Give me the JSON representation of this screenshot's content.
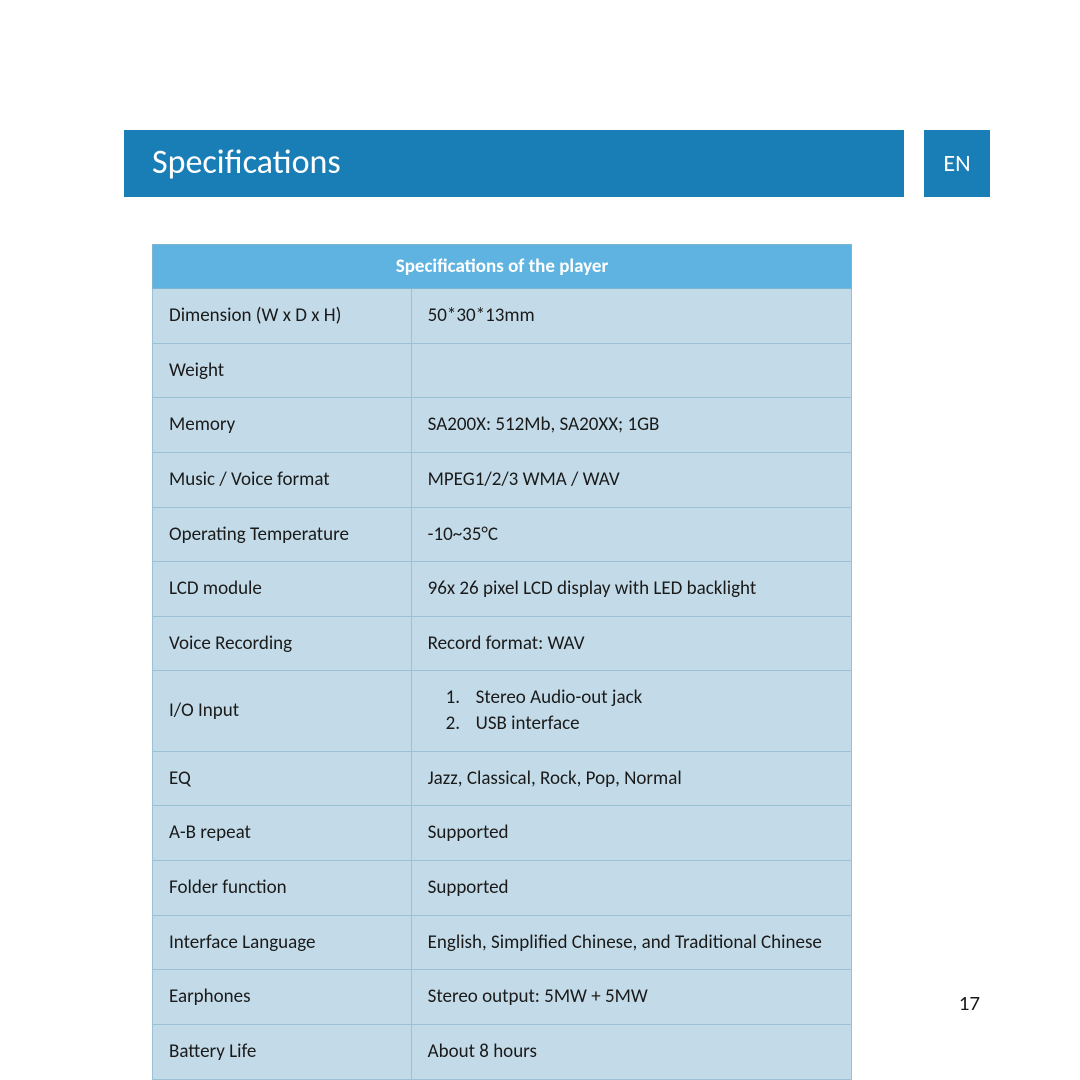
{
  "header": {
    "title": "Specifications",
    "lang_badge": "EN"
  },
  "table": {
    "type": "table",
    "header": "Specifications of the player",
    "header_bg": "#5fb3e0",
    "header_fg": "#ffffff",
    "cell_bg": "#c3dbe8",
    "border_color": "#9ac1d5",
    "label_fontsize": 19,
    "columns": [
      "label",
      "value"
    ],
    "col_widths": [
      "37%",
      "63%"
    ],
    "rows": [
      {
        "label": "Dimension (W x D x H)",
        "value": "50*30*13mm"
      },
      {
        "label": "Weight",
        "value": ""
      },
      {
        "label": "Memory",
        "value": "SA200X: 512Mb, SA20XX; 1GB"
      },
      {
        "label": "Music / Voice format",
        "value": "MPEG1/2/3 WMA / WAV"
      },
      {
        "label": "Operating Temperature",
        "value": "-10~35°C"
      },
      {
        "label": "LCD module",
        "value": "96x 26 pixel LCD display with LED backlight"
      },
      {
        "label": "Voice Recording",
        "value": "Record format: WAV"
      },
      {
        "label": "I/O Input",
        "value_list": [
          "Stereo Audio-out jack",
          "USB interface"
        ]
      },
      {
        "label": "EQ",
        "value": "Jazz, Classical, Rock, Pop, Normal"
      },
      {
        "label": "A-B repeat",
        "value": "Supported"
      },
      {
        "label": "Folder function",
        "value": "Supported"
      },
      {
        "label": "Interface Language",
        "value": "English, Simplified Chinese, and Traditional Chinese"
      },
      {
        "label": "Earphones",
        "value": "Stereo output: 5MW + 5MW"
      },
      {
        "label": "Battery Life",
        "value": "About 8 hours"
      }
    ]
  },
  "page_number": "17",
  "colors": {
    "title_bar_bg": "#1a7eb6",
    "title_bar_fg": "#ffffff",
    "page_bg": "#ffffff",
    "text": "#1a1a1a"
  }
}
